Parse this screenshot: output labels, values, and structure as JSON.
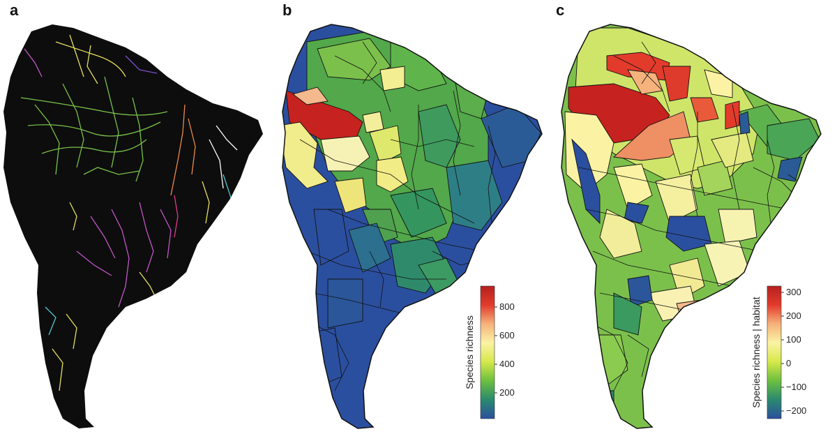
{
  "panels": [
    {
      "id": "a",
      "label": "a"
    },
    {
      "id": "b",
      "label": "b"
    },
    {
      "id": "c",
      "label": "c"
    }
  ],
  "legend_b": {
    "title": "Species richness",
    "ticks": [
      "200",
      "400",
      "600",
      "800"
    ],
    "colors": [
      "#2b4f9f",
      "#2a8a6e",
      "#6cbf3f",
      "#d6e84a",
      "#fbf3a3",
      "#f6b27c",
      "#e23b2c",
      "#b5211f"
    ]
  },
  "legend_c": {
    "title": "Species richness | habitat",
    "ticks": [
      "−200",
      "−100",
      "0",
      "100",
      "200",
      "300"
    ],
    "colors": [
      "#2b4f9f",
      "#2a8a6e",
      "#6cbf3f",
      "#d6e84a",
      "#fbf3a3",
      "#f6b27c",
      "#e23b2c",
      "#b5211f"
    ]
  },
  "colors": {
    "river_background": "#0d0d0d",
    "river_palette": [
      "#79c24a",
      "#c356c9",
      "#e7e05c",
      "#7a51c9",
      "#f08a4b",
      "#52c7d6",
      "#e23b8a",
      "#ffffff"
    ]
  }
}
